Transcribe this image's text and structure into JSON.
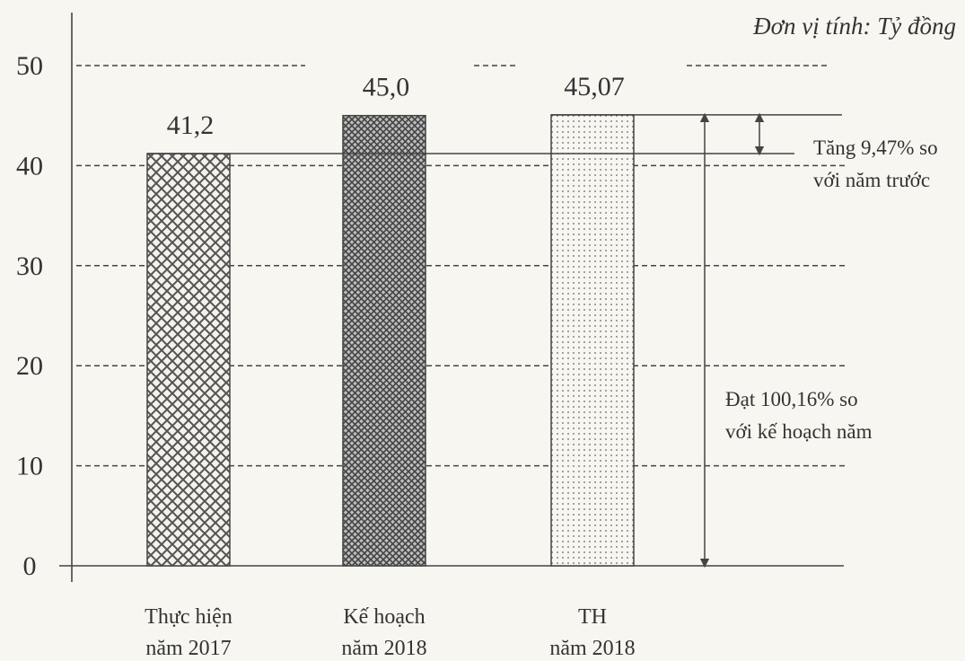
{
  "chart_data": {
    "type": "bar",
    "unit_note": "Đơn vị tính: Tỷ đồng",
    "categories": [
      [
        "Thực hiện",
        "năm 2017"
      ],
      [
        "Kế hoạch",
        "năm 2018"
      ],
      [
        "TH",
        "năm 2018"
      ]
    ],
    "values": [
      41.2,
      45.0,
      45.07
    ],
    "value_labels": [
      "41,2",
      "45,0",
      "45,07"
    ],
    "yticks": [
      0,
      10,
      20,
      30,
      40,
      50
    ],
    "ylim": [
      0,
      50
    ],
    "grid": "dashed",
    "annotations": [
      {
        "name": "growth-note",
        "lines": [
          "Tăng 9,47% so",
          "với năm trước"
        ]
      },
      {
        "name": "plan-note",
        "lines": [
          "Đạt 100,16% so",
          "với kế hoạch năm"
        ]
      }
    ]
  }
}
